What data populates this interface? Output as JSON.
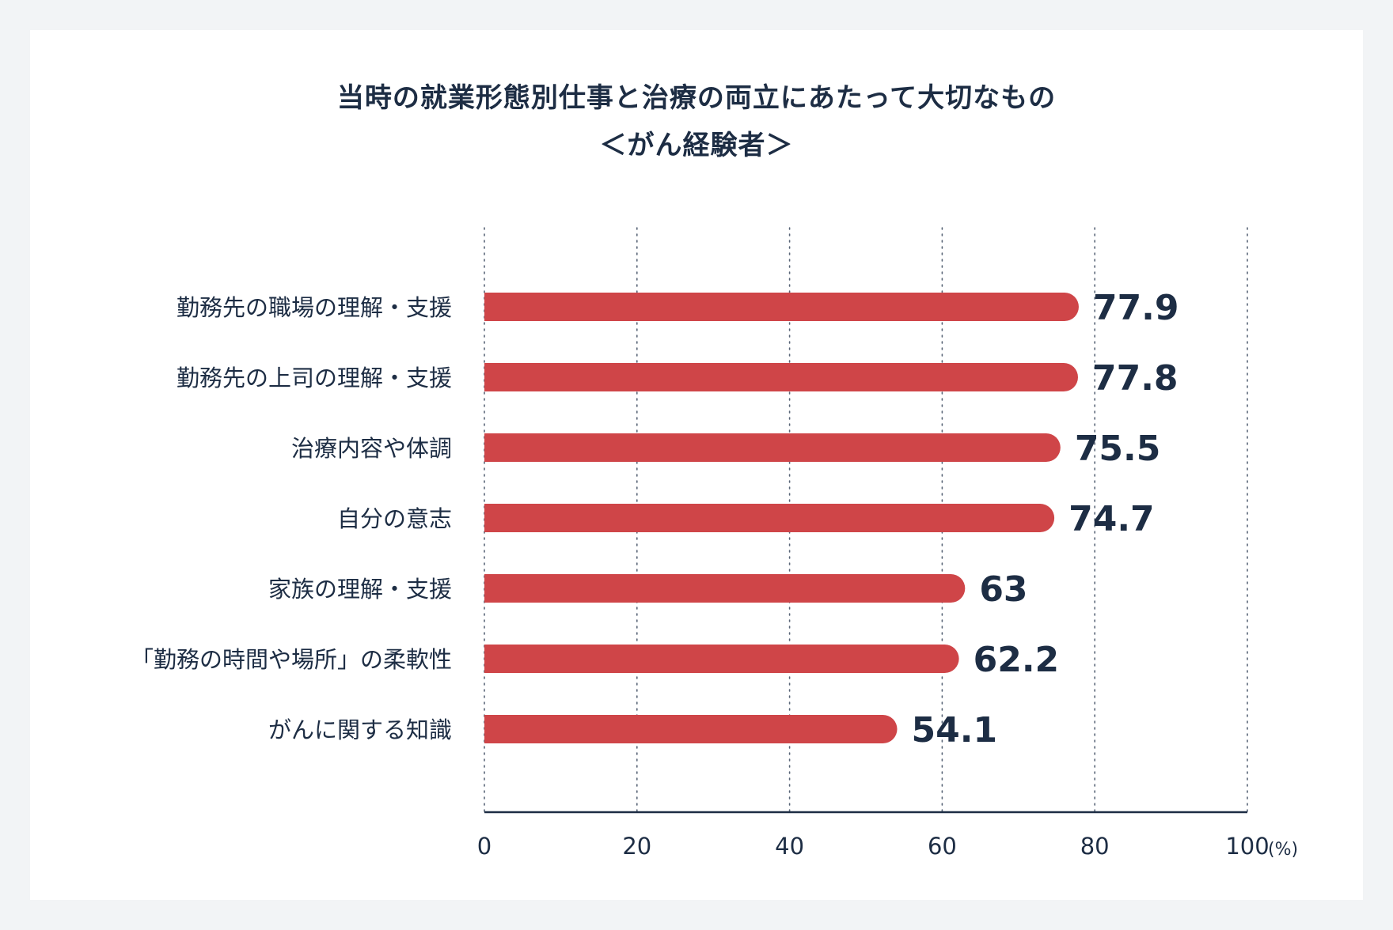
{
  "title": "当時の就業形態別仕事と治療の両立にあたって大切なもの",
  "subtitle": "＜がん経験者＞",
  "chart_data": {
    "type": "bar",
    "orientation": "horizontal",
    "title": "当時の就業形態別仕事と治療の両立にあたって大切なもの",
    "subtitle": "＜がん経験者＞",
    "categories": [
      "勤務先の職場の理解・支援",
      "勤務先の上司の理解・支援",
      "治療内容や体調",
      "自分の意志",
      "家族の理解・支援",
      "「勤務の時間や場所」の柔軟性",
      "がんに関する知識"
    ],
    "values": [
      77.9,
      77.8,
      75.5,
      74.7,
      63,
      62.2,
      54.1
    ],
    "value_labels": [
      "77.9",
      "77.8",
      "75.5",
      "74.7",
      "63",
      "62.2",
      "54.1"
    ],
    "xlim": [
      0,
      100
    ],
    "x_ticks": [
      "0",
      "20",
      "40",
      "60",
      "80",
      "100"
    ],
    "x_unit": "(%)",
    "grid": "vertical dotted",
    "colors": {
      "bar": "#cf4548",
      "text": "#1d2d44",
      "axis": "#1d2d44",
      "grid": "#5a6678"
    }
  }
}
